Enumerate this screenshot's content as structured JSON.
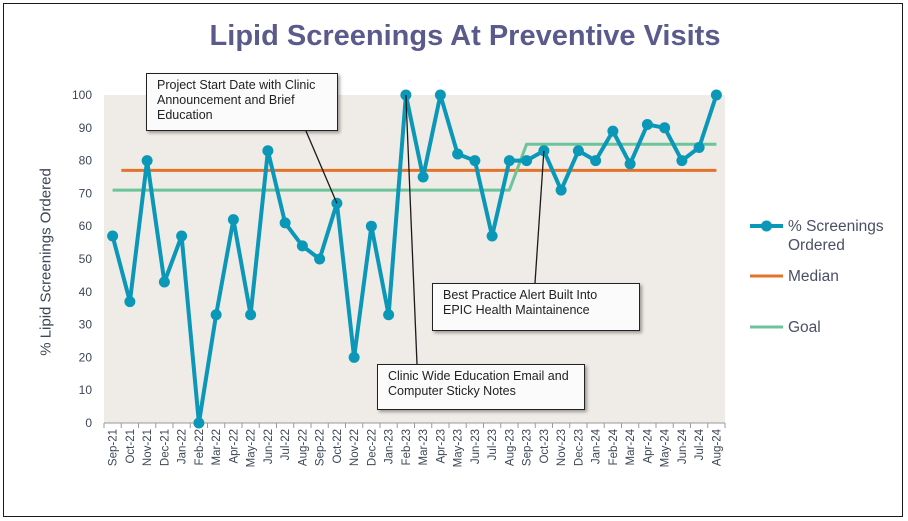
{
  "chart_data": {
    "type": "line",
    "title": "Lipid Screenings At Preventive Visits",
    "ylabel": "% Lipid Screenings Ordered",
    "xlabel": "",
    "ylim": [
      0,
      100
    ],
    "yticks": [
      0,
      10,
      20,
      30,
      40,
      50,
      60,
      70,
      80,
      90,
      100
    ],
    "grid": false,
    "legend_position": "right",
    "categories": [
      "Sep-21",
      "Oct-21",
      "Nov-21",
      "Dec-21",
      "Jan-22",
      "Feb-22",
      "Mar-22",
      "Apr-22",
      "May-22",
      "Jun-22",
      "Jul-22",
      "Aug-22",
      "Sep-22",
      "Oct-22",
      "Nov-22",
      "Dec-22",
      "Jan-23",
      "Feb-23",
      "Mar-23",
      "Apr-23",
      "May-23",
      "Jun-23",
      "Jul-23",
      "Aug-23",
      "Sep-23",
      "Oct-23",
      "Nov-23",
      "Dec-23",
      "Jan-24",
      "Feb-24",
      "Mar-24",
      "Apr-24",
      "May-24",
      "Jun-24",
      "Jul-24",
      "Aug-24"
    ],
    "series": [
      {
        "name": "% Screenings Ordered",
        "color": "#0a97b8",
        "values": [
          57,
          37,
          80,
          43,
          57,
          0,
          33,
          62,
          33,
          83,
          61,
          54,
          50,
          67,
          20,
          60,
          33,
          100,
          75,
          100,
          82,
          80,
          57,
          80,
          80,
          83,
          71,
          83,
          80,
          89,
          79,
          91,
          90,
          80,
          84,
          100
        ]
      },
      {
        "name": "Median",
        "color": "#e5722a",
        "values": [
          null,
          77,
          77,
          77,
          77,
          77,
          77,
          77,
          77,
          77,
          77,
          77,
          77,
          77,
          77,
          77,
          77,
          77,
          77,
          77,
          77,
          77,
          77,
          77,
          77,
          77,
          77,
          77,
          77,
          77,
          77,
          77,
          77,
          77,
          77,
          77
        ]
      },
      {
        "name": "Goal",
        "color": "#6bc49a",
        "values": [
          71,
          71,
          71,
          71,
          71,
          71,
          71,
          71,
          71,
          71,
          71,
          71,
          71,
          71,
          71,
          71,
          71,
          71,
          71,
          71,
          71,
          71,
          71,
          71,
          85,
          85,
          85,
          85,
          85,
          85,
          85,
          85,
          85,
          85,
          85,
          85
        ]
      }
    ],
    "annotations": [
      {
        "text": "Project Start Date with Clinic Announcement and Brief Education",
        "category": "Oct-22",
        "value": 67
      },
      {
        "text": "Clinic Wide Education Email and Computer Sticky Notes",
        "category": "Feb-23",
        "value": 100
      },
      {
        "text": "Best Practice Alert Built Into EPIC Health Maintainence",
        "category": "Oct-23",
        "value": 83
      }
    ]
  }
}
